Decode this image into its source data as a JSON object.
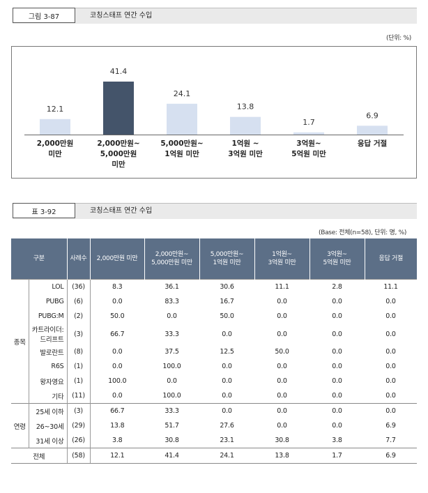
{
  "figure": {
    "tag": "그림 3-87",
    "title": "코칭스태프 연간 수입",
    "unit": "(단위: %)"
  },
  "chart_data": {
    "type": "bar",
    "title": "코칭스태프 연간 수입",
    "categories": [
      [
        "2,000만원",
        "미만"
      ],
      [
        "2,000만원~",
        "5,000만원",
        "미만"
      ],
      [
        "5,000만원~",
        "1억원 미만"
      ],
      [
        "1억원 ~",
        "3억원 미만"
      ],
      [
        "3억원~",
        "5억원 미만"
      ],
      [
        "응답 거절"
      ]
    ],
    "values": [
      12.1,
      41.4,
      24.1,
      13.8,
      1.7,
      6.9
    ],
    "highlight_index": 1,
    "colors": {
      "bar": "#d6e0f0",
      "highlight": "#44546a"
    },
    "ylim": [
      0,
      45
    ],
    "xlabel": "",
    "ylabel": ""
  },
  "table": {
    "tag": "표 3-92",
    "title": "코칭스태프 연간 수입",
    "base_note": "(Base: 전체(n=58), 단위: 명, %)",
    "headers": {
      "group": "구분",
      "n": "사례수",
      "cols": [
        [
          "2,000만원 미만"
        ],
        [
          "2,000만원~",
          "5,000만원 미만"
        ],
        [
          "5,000만원~",
          "1억원 미만"
        ],
        [
          "1억원~",
          "3억원 미만"
        ],
        [
          "3억원~",
          "5억원 미만"
        ],
        [
          "응답 거절"
        ]
      ]
    },
    "groups": [
      {
        "label": "종목",
        "rows": [
          {
            "label": "LOL",
            "n": "(36)",
            "values": [
              "8.3",
              "36.1",
              "30.6",
              "11.1",
              "2.8",
              "11.1"
            ]
          },
          {
            "label": "PUBG",
            "n": "(6)",
            "values": [
              "0.0",
              "83.3",
              "16.7",
              "0.0",
              "0.0",
              "0.0"
            ]
          },
          {
            "label": "PUBG:M",
            "n": "(2)",
            "values": [
              "50.0",
              "0.0",
              "50.0",
              "0.0",
              "0.0",
              "0.0"
            ]
          },
          {
            "label": "카트라이더:\n드리프트",
            "n": "(3)",
            "values": [
              "66.7",
              "33.3",
              "0.0",
              "0.0",
              "0.0",
              "0.0"
            ],
            "tall": true
          },
          {
            "label": "발로란트",
            "n": "(8)",
            "values": [
              "0.0",
              "37.5",
              "12.5",
              "50.0",
              "0.0",
              "0.0"
            ]
          },
          {
            "label": "R6S",
            "n": "(1)",
            "values": [
              "0.0",
              "100.0",
              "0.0",
              "0.0",
              "0.0",
              "0.0"
            ]
          },
          {
            "label": "왕자영요",
            "n": "(1)",
            "values": [
              "100.0",
              "0.0",
              "0.0",
              "0.0",
              "0.0",
              "0.0"
            ]
          },
          {
            "label": "기타",
            "n": "(11)",
            "values": [
              "0.0",
              "100.0",
              "0.0",
              "0.0",
              "0.0",
              "0.0"
            ]
          }
        ]
      },
      {
        "label": "연령",
        "rows": [
          {
            "label": "25세 이하",
            "n": "(3)",
            "values": [
              "66.7",
              "33.3",
              "0.0",
              "0.0",
              "0.0",
              "0.0"
            ]
          },
          {
            "label": "26~30세",
            "n": "(29)",
            "values": [
              "13.8",
              "51.7",
              "27.6",
              "0.0",
              "0.0",
              "6.9"
            ]
          },
          {
            "label": "31세 이상",
            "n": "(26)",
            "values": [
              "3.8",
              "30.8",
              "23.1",
              "30.8",
              "3.8",
              "7.7"
            ]
          }
        ]
      }
    ],
    "total": {
      "label": "전체",
      "n": "(58)",
      "values": [
        "12.1",
        "41.4",
        "24.1",
        "13.8",
        "1.7",
        "6.9"
      ]
    }
  }
}
